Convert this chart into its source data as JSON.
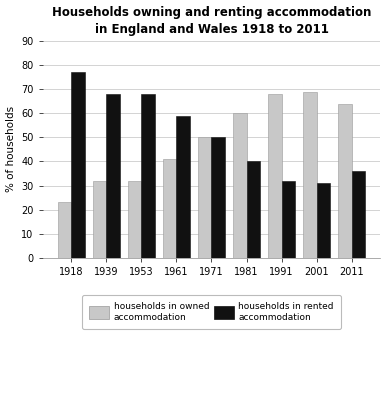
{
  "title": "Households owning and renting accommodation\nin England and Wales 1918 to 2011",
  "years": [
    "1918",
    "1939",
    "1953",
    "1961",
    "1971",
    "1981",
    "1991",
    "2001",
    "2011"
  ],
  "owned": [
    23,
    32,
    32,
    41,
    50,
    60,
    68,
    69,
    64
  ],
  "rented": [
    77,
    68,
    68,
    59,
    50,
    40,
    32,
    31,
    36
  ],
  "owned_color": "#c8c8c8",
  "rented_color": "#111111",
  "ylabel": "% of households",
  "ylim": [
    0,
    90
  ],
  "yticks": [
    0,
    10,
    20,
    30,
    40,
    50,
    60,
    70,
    80,
    90
  ],
  "bar_width": 0.38,
  "legend_owned": "households in owned\naccommodation",
  "legend_rented": "households in rented\naccommodation",
  "title_fontsize": 8.5,
  "label_fontsize": 7.5,
  "tick_fontsize": 7,
  "legend_fontsize": 6.5
}
